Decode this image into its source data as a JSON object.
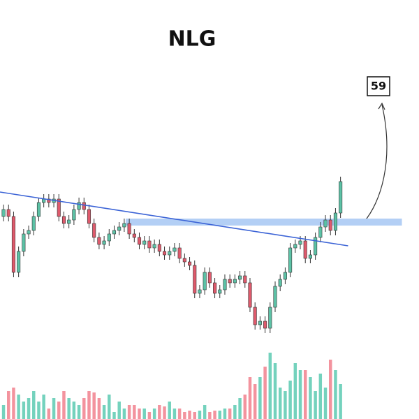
{
  "chart_data": {
    "type": "candlestick",
    "title": "NLG",
    "xlim": [
      -0.7,
      82.6
    ],
    "ylim": [
      20,
      60
    ],
    "volume_ylim": [
      0,
      100
    ],
    "up_color": "#5cc2a6",
    "down_color": "#df5a6c",
    "volume_up_color": "#74d2bd",
    "volume_down_color": "#f3939e",
    "open": [
      39,
      40,
      39,
      31,
      34,
      36.5,
      37,
      39,
      41,
      41.5,
      41,
      41.5,
      39,
      38,
      38.5,
      40,
      41,
      40,
      38,
      36,
      35,
      35.5,
      36.5,
      37,
      37.5,
      38,
      36.5,
      36,
      35,
      35.5,
      34.5,
      35,
      34,
      33.5,
      34,
      34.5,
      33,
      32.5,
      32,
      28,
      28.5,
      31,
      29.5,
      28,
      28.5,
      30,
      29.5,
      30,
      30.5,
      29.5,
      26,
      23.5,
      24,
      23,
      26,
      29,
      30,
      31,
      34.5,
      35,
      35.5,
      33,
      33.5,
      36,
      37.5,
      38.5,
      37,
      39.5
    ],
    "high": [
      40.7,
      40.7,
      39.7,
      34.7,
      37.2,
      37.7,
      39.7,
      41.7,
      42.2,
      42.2,
      42.2,
      42.2,
      39.7,
      39.2,
      40.7,
      41.7,
      41.7,
      40.7,
      38.7,
      36.7,
      36.2,
      37.2,
      37.7,
      38.2,
      38.7,
      38.7,
      37.2,
      36.7,
      36.2,
      36.2,
      35.7,
      35.7,
      34.7,
      34.7,
      35.2,
      35.2,
      33.7,
      33.2,
      32.7,
      29.2,
      31.7,
      31.7,
      30.2,
      29.2,
      30.7,
      30.7,
      30.7,
      31.2,
      31.2,
      30.2,
      26.7,
      24.7,
      24.7,
      26.7,
      29.7,
      30.7,
      31.7,
      35.2,
      35.7,
      36.2,
      36.2,
      34.2,
      36.7,
      38.2,
      39.2,
      39.2,
      40.2,
      44.7
    ],
    "low": [
      38.3,
      38.3,
      30.3,
      30.3,
      33.3,
      35.8,
      36.3,
      38.3,
      40.3,
      40.3,
      40.3,
      38.3,
      37.3,
      37.3,
      37.8,
      39.3,
      39.3,
      37.3,
      35.3,
      34.3,
      34.3,
      34.8,
      35.8,
      36.3,
      36.8,
      35.8,
      35.3,
      34.3,
      34.3,
      33.8,
      33.8,
      33.3,
      32.8,
      32.8,
      33.3,
      32.3,
      31.8,
      31.3,
      27.3,
      27.3,
      27.8,
      28.8,
      27.3,
      27.3,
      27.8,
      28.8,
      28.8,
      29.3,
      28.8,
      25.3,
      22.8,
      22.8,
      22.3,
      22.3,
      25.3,
      28.3,
      29.3,
      30.3,
      33.8,
      34.3,
      32.3,
      32.3,
      32.8,
      35.3,
      36.8,
      36.3,
      36.3,
      38.8
    ],
    "close": [
      40,
      39,
      31,
      34,
      36.5,
      37,
      39,
      41,
      41.5,
      41,
      41.5,
      39,
      38,
      38.5,
      40,
      41,
      40,
      38,
      36,
      35,
      35.5,
      36.5,
      37,
      37.5,
      38,
      36.5,
      36,
      35,
      35.5,
      34.5,
      35,
      34,
      33.5,
      34,
      34.5,
      33,
      32.5,
      32,
      28,
      28.5,
      31,
      29.5,
      28,
      28.5,
      30,
      29.5,
      30,
      30.5,
      29.5,
      26,
      23.5,
      24,
      23,
      26,
      29,
      30,
      31,
      34.5,
      35,
      35.5,
      33,
      33.5,
      36,
      37.5,
      38.5,
      37,
      39.5,
      44
    ],
    "volume": [
      20,
      40,
      45,
      35,
      25,
      30,
      40,
      25,
      35,
      15,
      30,
      25,
      40,
      30,
      25,
      20,
      30,
      40,
      38,
      30,
      20,
      35,
      10,
      25,
      15,
      20,
      20,
      15,
      15,
      10,
      15,
      20,
      18,
      25,
      15,
      15,
      10,
      12,
      10,
      12,
      20,
      10,
      12,
      12,
      15,
      15,
      20,
      30,
      35,
      60,
      50,
      60,
      75,
      95,
      80,
      45,
      40,
      55,
      80,
      70,
      70,
      60,
      40,
      65,
      45,
      85,
      70,
      50
    ],
    "trendline": {
      "x": [
        -0.7,
        68.5
      ],
      "y": [
        42.5,
        34.8
      ],
      "color": "#3b63d6"
    },
    "resistance": {
      "value": 38.2,
      "x": [
        24.3,
        79.2
      ],
      "color": "#b3cff5"
    },
    "target": 59
  }
}
